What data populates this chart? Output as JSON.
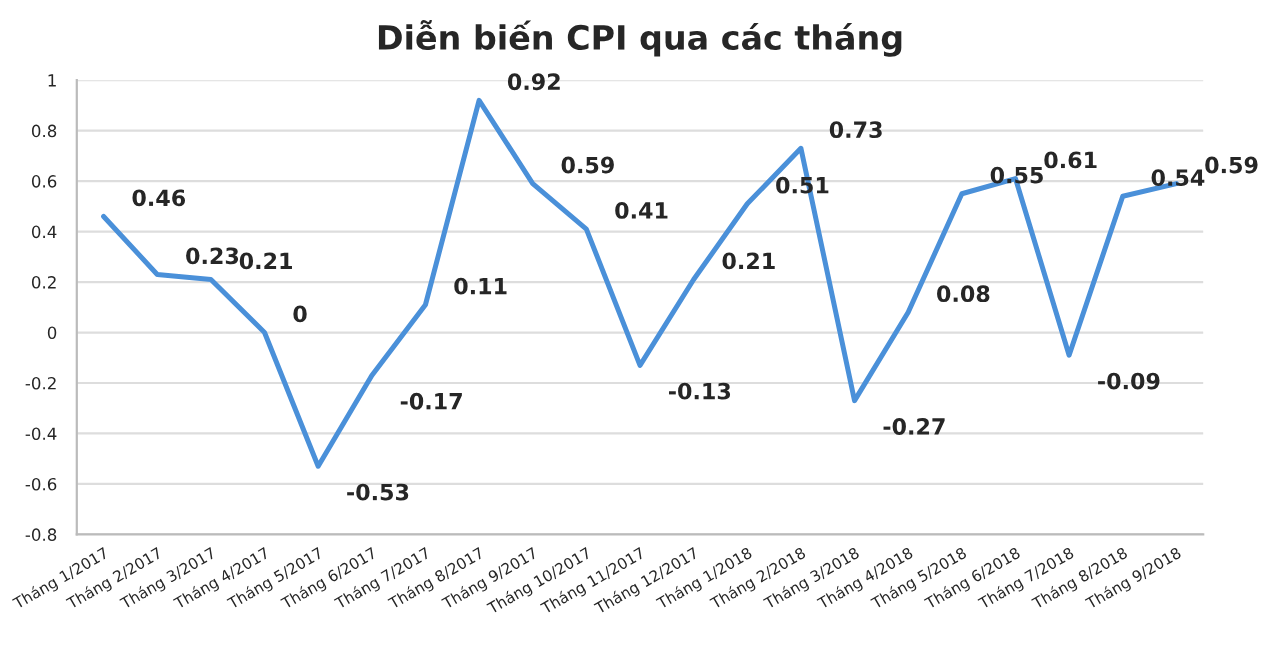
{
  "chart_data": {
    "type": "line",
    "title": "Diễn biến CPI qua các tháng",
    "categories": [
      "Tháng 1/2017",
      "Tháng 2/2017",
      "Tháng 3/2017",
      "Tháng 4/2017",
      "Tháng 5/2017",
      "Tháng 6/2017",
      "Tháng 7/2017",
      "Tháng 8/2017",
      "Tháng 9/2017",
      "Tháng 10/2017",
      "Tháng 11/2017",
      "Tháng 12/2017",
      "Tháng 1/2018",
      "Tháng 2/2018",
      "Tháng 3/2018",
      "Tháng 4/2018",
      "Tháng 5/2018",
      "Tháng 6/2018",
      "Tháng 7/2018",
      "Tháng 8/2018",
      "Tháng 9/2018"
    ],
    "series": [
      {
        "color": "#4a90d9",
        "values": [
          0.46,
          0.23,
          0.21,
          0,
          -0.53,
          -0.17,
          0.11,
          0.92,
          0.59,
          0.41,
          -0.13,
          0.21,
          0.51,
          0.73,
          -0.27,
          0.08,
          0.55,
          0.61,
          -0.09,
          0.54,
          0.59
        ]
      }
    ],
    "ylim": [
      -0.8,
      1
    ],
    "yticks": [
      -0.8,
      -0.6,
      -0.4,
      -0.2,
      0,
      0.2,
      0.4,
      0.6,
      0.8,
      1
    ],
    "grid": "y",
    "data_labels": true,
    "marker": "none",
    "line_style": "solid",
    "legend": false
  }
}
